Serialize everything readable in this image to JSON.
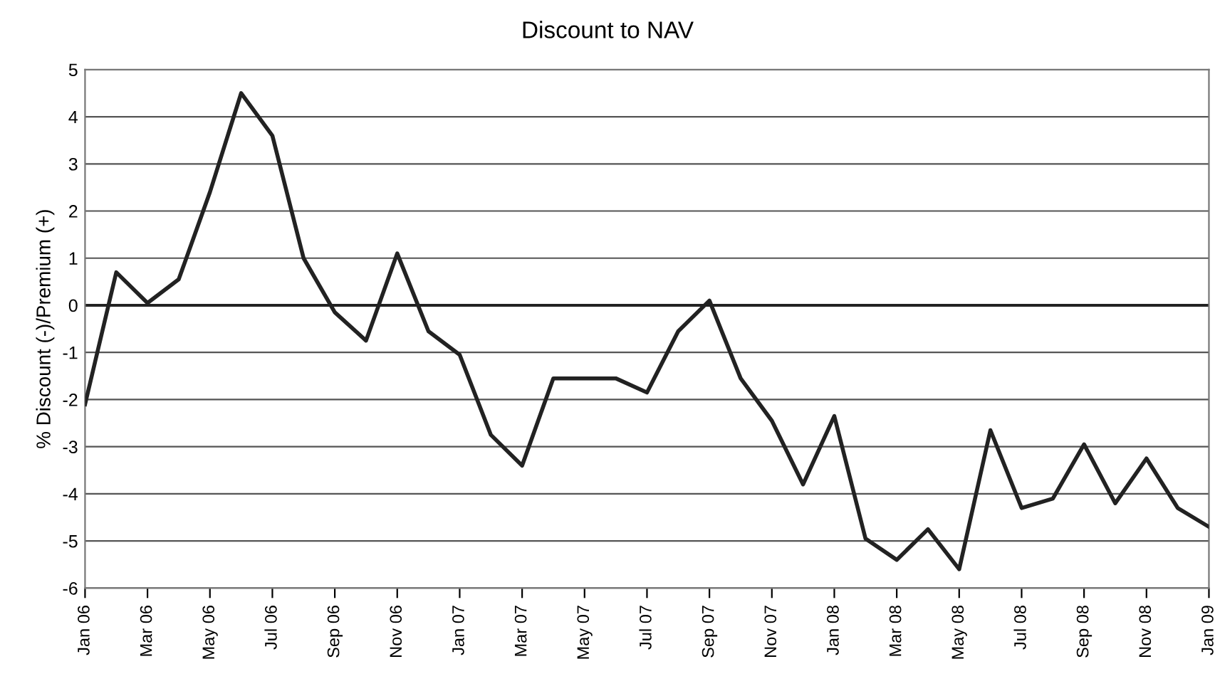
{
  "chart_data": {
    "type": "line",
    "title": "Discount to NAV",
    "ylabel": "% Discount (-)/Premium (+)",
    "categories": [
      "Jan 06",
      null,
      "Mar 06",
      null,
      "May 06",
      null,
      "Jul 06",
      null,
      "Sep 06",
      null,
      "Nov 06",
      null,
      "Jan 07",
      null,
      "Mar 07",
      null,
      "May 07",
      null,
      "Jul 07",
      null,
      "Sep 07",
      null,
      "Nov 07",
      null,
      "Jan 08",
      null,
      "Mar 08",
      null,
      "May 08",
      null,
      "Jul 08",
      null,
      "Sep 08",
      null,
      "Nov 08",
      null,
      "Jan 09"
    ],
    "series": [
      {
        "color": "#222222",
        "values": [
          -2.1,
          0.7,
          0.05,
          0.55,
          2.4,
          4.5,
          3.6,
          1.0,
          -0.15,
          -0.75,
          1.1,
          -0.55,
          -1.05,
          -2.75,
          -3.4,
          -1.55,
          -1.55,
          -1.55,
          -1.85,
          -0.55,
          0.1,
          -1.55,
          -2.45,
          -3.8,
          -2.35,
          -4.95,
          -5.4,
          -4.75,
          -5.6,
          -2.65,
          -4.3,
          -4.1,
          -2.95,
          -4.2,
          -3.25,
          -4.3,
          -4.7
        ]
      }
    ],
    "ylim": [
      -6,
      5
    ],
    "yticks": [
      -6,
      -5,
      -4,
      -3,
      -2,
      -1,
      0,
      1,
      2,
      3,
      4,
      5
    ],
    "ref_lines": [
      {
        "axis": "y",
        "value": 0,
        "color": "#222222"
      }
    ],
    "grid": "y",
    "legend": false,
    "marker": "none",
    "line_style": "solid"
  }
}
